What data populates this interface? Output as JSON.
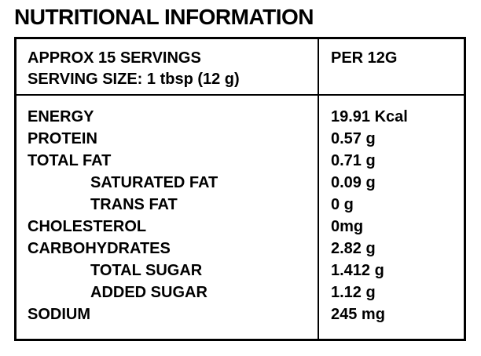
{
  "page": {
    "title": "NUTRITIONAL INFORMATION"
  },
  "table": {
    "header": {
      "servings_line": "APPROX 15 SERVINGS",
      "serving_size_line": "SERVING SIZE: 1 tbsp (12 g)",
      "per_column_label": "PER 12G"
    },
    "rows": [
      {
        "label": "ENERGY",
        "value": "19.91 Kcal",
        "indent": false
      },
      {
        "label": "PROTEIN",
        "value": "0.57 g",
        "indent": false
      },
      {
        "label": "TOTAL FAT",
        "value": "0.71 g",
        "indent": false
      },
      {
        "label": "SATURATED FAT",
        "value": "0.09 g",
        "indent": true
      },
      {
        "label": "TRANS FAT",
        "value": "0 g",
        "indent": true
      },
      {
        "label": "CHOLESTEROL",
        "value": "0mg",
        "indent": false
      },
      {
        "label": "CARBOHYDRATES",
        "value": "2.82 g",
        "indent": false
      },
      {
        "label": "TOTAL SUGAR",
        "value": "1.412 g",
        "indent": true
      },
      {
        "label": "ADDED SUGAR",
        "value": "1.12 g",
        "indent": true
      },
      {
        "label": "SODIUM",
        "value": "245 mg",
        "indent": false
      }
    ],
    "colors": {
      "text": "#000000",
      "background": "#ffffff",
      "border": "#000000"
    }
  }
}
